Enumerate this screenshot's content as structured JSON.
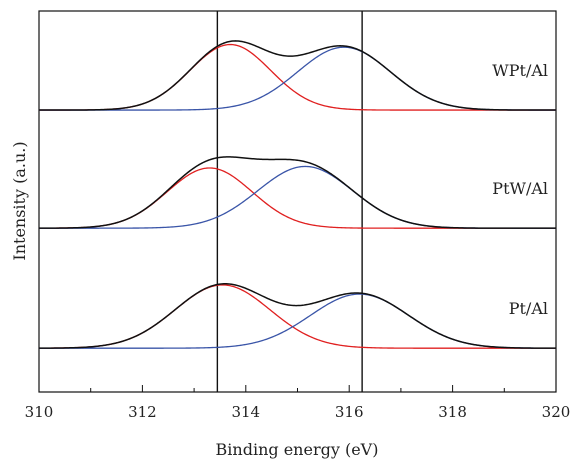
{
  "chart_data": {
    "type": "line",
    "xlabel": "Binding energy (eV)",
    "ylabel": "Intensity (a.u.)",
    "xlim": [
      310,
      320
    ],
    "ylim": [
      0,
      1
    ],
    "x_ticks": [
      "310",
      "312",
      "314",
      "316",
      "318",
      "320"
    ],
    "y_ticks_labeled": false,
    "reference_lines_x": [
      313.45,
      316.25
    ],
    "colors": {
      "envelope": "#111111",
      "peak_a": "#e02020",
      "peak_b": "#3a55a8",
      "reference": "#111111"
    },
    "panels": [
      {
        "label": "WPt/Al",
        "baseline": 0.74,
        "peak_a": {
          "center": 313.7,
          "height": 0.172,
          "sigma": 0.78
        },
        "peak_b": {
          "center": 315.9,
          "height": 0.165,
          "sigma": 0.9
        }
      },
      {
        "label": "PtW/Al",
        "baseline": 0.43,
        "peak_a": {
          "center": 313.3,
          "height": 0.158,
          "sigma": 0.82
        },
        "peak_b": {
          "center": 315.15,
          "height": 0.162,
          "sigma": 0.92
        }
      },
      {
        "label": "Pt/Al",
        "baseline": 0.115,
        "peak_a": {
          "center": 313.55,
          "height": 0.166,
          "sigma": 0.92
        },
        "peak_b": {
          "center": 316.2,
          "height": 0.142,
          "sigma": 0.95
        }
      }
    ]
  }
}
